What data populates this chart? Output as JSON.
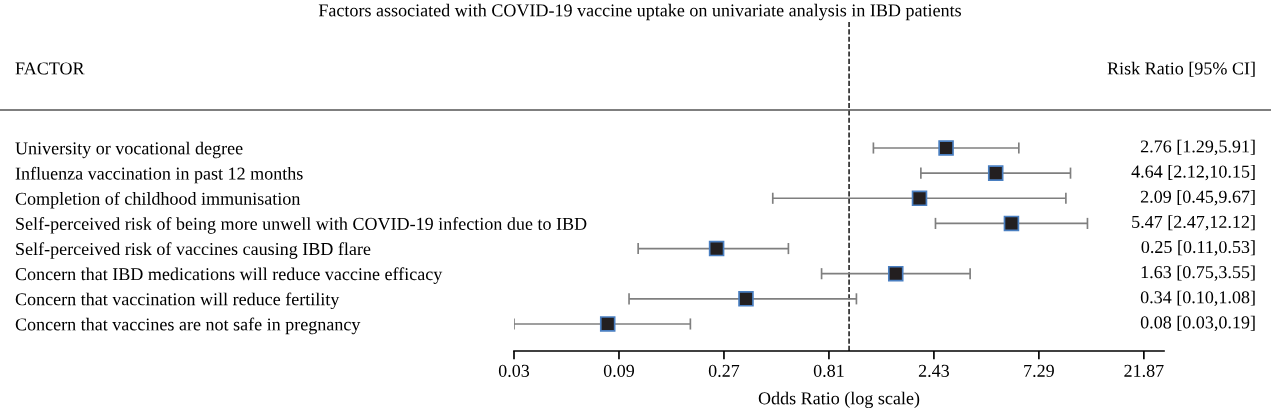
{
  "chart_data": {
    "type": "scatter",
    "orientation": "horizontal",
    "log": "x",
    "title": "Factors associated with COVID-19 vaccine uptake on univariate analysis in IBD patients",
    "xlabel": "Odds Ratio (log scale)",
    "annotations": [
      "FACTOR",
      "Risk Ratio [95% CI]"
    ],
    "categories": [
      "University or vocational degree",
      "Influenza vaccination in past 12 months",
      "Completion of childhood immunisation",
      "Self-perceived risk of being more unwell with COVID-19 infection due to IBD",
      "Self-perceived risk of vaccines causing IBD flare",
      "Concern that IBD medications will reduce vaccine efficacy",
      "Concern that vaccination will reduce fertility",
      "Concern that vaccines are not safe in pregnancy"
    ],
    "values": [
      2.76,
      4.64,
      2.09,
      5.47,
      0.25,
      1.63,
      0.34,
      0.08
    ],
    "errors": [
      [
        1.29,
        5.91
      ],
      [
        2.12,
        10.15
      ],
      [
        0.45,
        9.67
      ],
      [
        2.47,
        12.12
      ],
      [
        0.11,
        0.53
      ],
      [
        0.75,
        3.55
      ],
      [
        0.1,
        1.08
      ],
      [
        0.03,
        0.19
      ]
    ],
    "value_labels": [
      "2.76 [1.29,5.91]",
      "4.64 [2.12,10.15]",
      "2.09 [0.45,9.67]",
      "5.47 [2.47,12.12]",
      "0.25 [0.11,0.53]",
      "1.63 [0.75,3.55]",
      "0.34 [0.10,1.08]",
      "0.08 [0.03,0.19]"
    ],
    "color": "#231f20",
    "marker": "square",
    "xlim": [
      0.03,
      27
    ],
    "xticks": [
      0.03,
      0.09,
      0.27,
      0.81,
      2.43,
      7.29,
      21.87
    ],
    "ref_lines": [
      {
        "axis": "x",
        "value": 1,
        "line_style": "dashed",
        "color": "#000000"
      }
    ]
  }
}
